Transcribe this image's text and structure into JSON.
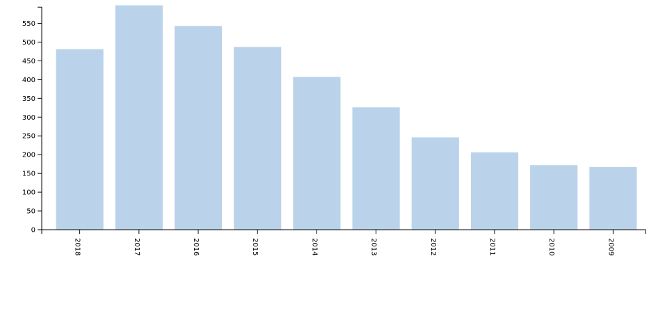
{
  "chart_data": {
    "type": "bar",
    "title": "",
    "xlabel": "",
    "ylabel": "",
    "categories": [
      "2018",
      "2017",
      "2016",
      "2015",
      "2014",
      "2013",
      "2012",
      "2011",
      "2010",
      "2009"
    ],
    "values": [
      481,
      598,
      543,
      487,
      407,
      326,
      246,
      206,
      172,
      167
    ],
    "ylim": [
      0,
      593
    ],
    "yticks": [
      0,
      50,
      100,
      150,
      200,
      250,
      300,
      350,
      400,
      450,
      500,
      550
    ],
    "grid": false,
    "bar_color": "#bad3ea"
  }
}
